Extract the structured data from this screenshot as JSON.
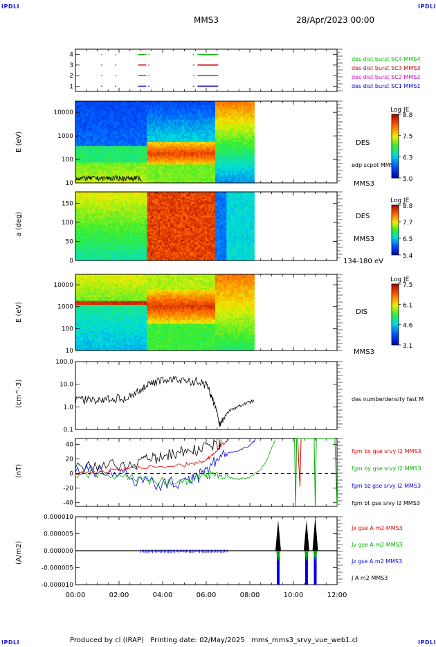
{
  "corner_label": "IPDLI",
  "header": {
    "spacecraft": "MMS3",
    "date": "28/Apr/2023 00:00"
  },
  "footer": {
    "text": "Produced by cl (IRAP)   Printing date: 02/May/2025   mms_mms3_srvy_vue_web1.cl"
  },
  "chart_data": [
    {
      "type": "line",
      "panel": "burst coverage",
      "ylim": [
        0.5,
        4.5
      ],
      "yticks": [
        "1",
        "2",
        "3",
        "4"
      ],
      "series": [
        {
          "name": "des dist burst SC1 MMS1",
          "level": 1,
          "color": "#0000cc",
          "intervals": [
            [
              1.18,
              1.2
            ],
            [
              1.82,
              1.84
            ],
            [
              2.88,
              3.25
            ],
            [
              3.35,
              3.4
            ],
            [
              5.4,
              5.45
            ],
            [
              5.6,
              6.55
            ]
          ]
        },
        {
          "name": "des dist burst SC2 MMS2",
          "level": 2,
          "color": "#cc00cc",
          "intervals": [
            [
              1.18,
              1.2
            ],
            [
              1.82,
              1.84
            ],
            [
              2.88,
              3.25
            ],
            [
              3.35,
              3.4
            ],
            [
              5.4,
              5.45
            ],
            [
              5.6,
              6.55
            ]
          ]
        },
        {
          "name": "des dist burst SC3 MMS3",
          "level": 3,
          "color": "#cc0000",
          "intervals": [
            [
              1.18,
              1.2
            ],
            [
              1.82,
              1.84
            ],
            [
              2.88,
              3.25
            ],
            [
              3.35,
              3.4
            ],
            [
              5.4,
              5.45
            ],
            [
              5.6,
              6.55
            ]
          ]
        },
        {
          "name": "des dist burst SC4 MMS4",
          "level": 4,
          "color": "#00bb00",
          "intervals": [
            [
              1.18,
              1.2
            ],
            [
              1.82,
              1.84
            ],
            [
              2.88,
              3.25
            ],
            [
              3.35,
              3.4
            ],
            [
              5.4,
              5.45
            ],
            [
              5.6,
              6.55
            ]
          ]
        }
      ]
    },
    {
      "type": "heatmap",
      "panel": "DES energy spectrogram",
      "ylabel": "E (eV)",
      "yscale": "log",
      "ylim": [
        10,
        30000
      ],
      "yticks": [
        "10",
        "100",
        "1000",
        "10000"
      ],
      "label": "DES",
      "overlay_label": "edp scpot MMS3",
      "sc_label": "MMS3",
      "colorbar": {
        "title": "Log JE",
        "ticks": [
          "8.8",
          "7.5",
          "6.3",
          "5.0"
        ],
        "range": [
          5.0,
          8.8
        ]
      },
      "data_end_hour": 8.2
    },
    {
      "type": "heatmap",
      "panel": "DES pitch angle",
      "ylabel": "a (deg)",
      "ylim": [
        0,
        180
      ],
      "yticks": [
        "0",
        "50",
        "100",
        "150"
      ],
      "label": "DES",
      "sc_label": "MMS3",
      "energy_label": "134-180 eV",
      "colorbar": {
        "title": "Log JE",
        "ticks": [
          "8.8",
          "7.7",
          "6.5",
          "5.4"
        ],
        "range": [
          5.4,
          8.8
        ]
      },
      "data_end_hour": 8.2
    },
    {
      "type": "heatmap",
      "panel": "DIS energy spectrogram",
      "ylabel": "E (eV)",
      "yscale": "log",
      "ylim": [
        10,
        30000
      ],
      "yticks": [
        "10",
        "100",
        "1000",
        "10000"
      ],
      "label": "DIS",
      "sc_label": "MMS3",
      "colorbar": {
        "title": "Log JE",
        "ticks": [
          "7.5",
          "6.1",
          "4.6",
          "3.1"
        ],
        "range": [
          3.1,
          7.5
        ]
      },
      "data_end_hour": 8.2
    },
    {
      "type": "line",
      "panel": "density",
      "ylabel": "(cm^-3)",
      "yscale": "log",
      "ylim": [
        0.1,
        100
      ],
      "yticks": [
        "0.1",
        "1.0",
        "10.0",
        "100.0"
      ],
      "series": [
        {
          "name": "des numberdensity fast M",
          "color": "#000000",
          "x": [
            0,
            0.5,
            1,
            1.5,
            2,
            2.5,
            3,
            3.3,
            3.5,
            4,
            4.5,
            5,
            5.5,
            6,
            6.2,
            6.4,
            6.6,
            6.8,
            7,
            7.3,
            7.6,
            8,
            8.2
          ],
          "y": [
            2,
            2.2,
            1.9,
            2.4,
            2.5,
            3,
            6,
            9,
            12,
            16,
            17,
            14,
            15,
            10,
            4,
            1.2,
            0.18,
            0.3,
            0.6,
            0.9,
            1.2,
            1.6,
            2
          ]
        }
      ]
    },
    {
      "type": "line",
      "panel": "magnetic field",
      "ylabel": "(nT)",
      "ylim": [
        -45,
        48
      ],
      "yticks": [
        "-40",
        "-20",
        "0",
        "20",
        "40"
      ],
      "series": [
        {
          "name": "fgm bx gse srvy l2 MMS3",
          "color": "#dd0000",
          "x": [
            0,
            1,
            2,
            3,
            4,
            5,
            5.5,
            6,
            6.3,
            6.6,
            6.8,
            7.0
          ],
          "y": [
            0,
            2,
            5,
            8,
            10,
            12,
            14,
            18,
            25,
            35,
            42,
            48
          ],
          "x2": [
            10.2,
            10.25,
            10.3,
            10.35
          ],
          "y2": [
            48,
            10,
            -18,
            48
          ]
        },
        {
          "name": "fgm by gse srvy l2 MMS3",
          "color": "#00aa00",
          "x": [
            0,
            1,
            2,
            3,
            4,
            5,
            5.5,
            6,
            6.5,
            7,
            7.5,
            8,
            8.5,
            8.8,
            9.0,
            9.2
          ],
          "y": [
            0,
            -2,
            -4,
            -8,
            -10,
            -12,
            -5,
            -3,
            0,
            -5,
            -8,
            -5,
            5,
            20,
            35,
            48
          ],
          "x2": [
            10.05,
            10.1,
            10.15,
            10.95,
            11.0,
            11.05,
            11.9,
            12.0
          ],
          "y2": [
            48,
            -45,
            48,
            48,
            -45,
            48,
            48,
            -45
          ]
        },
        {
          "name": "fgm bz gse srvy l2 MMS3",
          "color": "#0000dd",
          "x": [
            0,
            1,
            2,
            3,
            4,
            5,
            5.5,
            6,
            6.5,
            7,
            7.5,
            8,
            8.3
          ],
          "y": [
            5,
            3,
            0,
            -10,
            -15,
            -12,
            -8,
            5,
            20,
            28,
            32,
            38,
            48
          ]
        },
        {
          "name": "fgm bt gse srvy l2 MMS3",
          "color": "#000000",
          "x": [
            0,
            1,
            2,
            3,
            3.5,
            4,
            4.5,
            5,
            5.5,
            6,
            6.5,
            6.7
          ],
          "y": [
            8,
            10,
            12,
            16,
            20,
            22,
            28,
            30,
            32,
            35,
            40,
            40
          ]
        }
      ]
    },
    {
      "type": "line",
      "panel": "current density",
      "ylabel": "(A/m2)",
      "ylim": [
        -0.0001,
        0.0001
      ],
      "yticks": [
        "-0.000010",
        "-0.000005",
        "0.000000",
        "0.000005",
        "0.000010"
      ],
      "series": [
        {
          "name": "Jx gse A m2 MMS3",
          "color": "#dd0000"
        },
        {
          "name": "Jy gse A m2 MMS3",
          "color": "#00aa00"
        },
        {
          "name": "Jz gse A m2 MMS3",
          "color": "#0000dd"
        },
        {
          "name": "J A m2 MMS3",
          "color": "#000000"
        }
      ],
      "spikes": [
        {
          "x": 9.3,
          "j": 9e-05,
          "jz": -0.0001
        },
        {
          "x": 10.6,
          "j": 9e-05,
          "jz": -0.0001
        },
        {
          "x": 11.0,
          "j": 0.0001,
          "jz": -0.0001
        }
      ]
    }
  ],
  "xaxis": {
    "ticks": [
      "00:00",
      "02:00",
      "04:00",
      "06:00",
      "08:00",
      "10:00",
      "12:00"
    ],
    "xlim_hours": [
      0,
      12
    ]
  }
}
